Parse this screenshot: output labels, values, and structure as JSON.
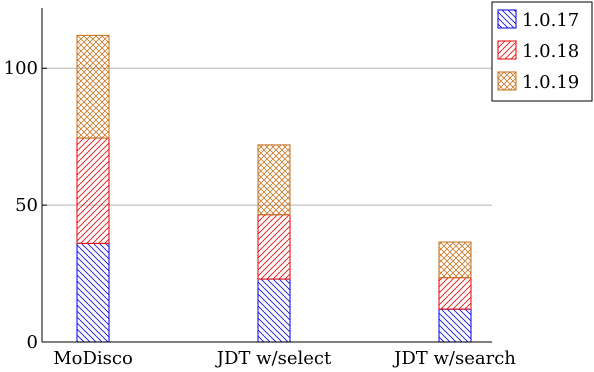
{
  "chart_data": {
    "type": "bar",
    "stacked": true,
    "title": "",
    "xlabel": "",
    "ylabel": "",
    "categories": [
      "MoDisco",
      "JDT w/select",
      "JDT w/search"
    ],
    "ylim": [
      0,
      122
    ],
    "yticks": [
      0,
      50,
      100
    ],
    "grid": "horizontal",
    "legend_position": "top-right",
    "series": [
      {
        "name": "1.0.17",
        "values": [
          36,
          23,
          12
        ],
        "color": "#1515e8",
        "pattern": "diagonal-down"
      },
      {
        "name": "1.0.18",
        "values": [
          38.5,
          23.5,
          11.5
        ],
        "color": "#e81515",
        "pattern": "diagonal-up"
      },
      {
        "name": "1.0.19",
        "values": [
          37.5,
          25.5,
          13
        ],
        "color": "#c8782a",
        "pattern": "crosshatch"
      }
    ]
  }
}
